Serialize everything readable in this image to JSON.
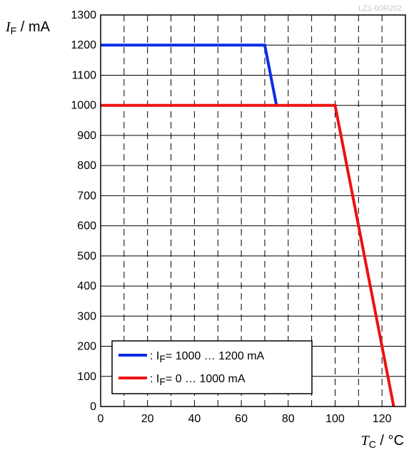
{
  "chart_data": {
    "type": "line",
    "figure_code": "LZ1-00R202",
    "ylabel": {
      "symbol": "I",
      "subscript": "F",
      "unit": " / mA"
    },
    "xlabel": {
      "symbol": "T",
      "subscript": "C",
      "unit": " / °C"
    },
    "xlim": [
      0,
      130
    ],
    "ylim": [
      0,
      1300
    ],
    "xticks": [
      0,
      20,
      40,
      60,
      80,
      100,
      120
    ],
    "yticks": [
      0,
      100,
      200,
      300,
      400,
      500,
      600,
      700,
      800,
      900,
      1000,
      1100,
      1200,
      1300
    ],
    "grid": {
      "vertical_dashed_every": 10,
      "horizontal_solid_every": 100
    },
    "legend_position": "bottom-left",
    "series": [
      {
        "legend": {
          "prefix": ": I",
          "subscript": "F",
          "suffix": "= 1000 … 1200 mA"
        },
        "color": "#0a2ee6",
        "x": [
          0,
          70,
          75
        ],
        "y": [
          1200,
          1200,
          1000
        ]
      },
      {
        "legend": {
          "prefix": ": I",
          "subscript": "F",
          "suffix": "= 0 … 1000 mA"
        },
        "color": "#ee1111",
        "x": [
          0,
          100,
          125
        ],
        "y": [
          1000,
          1000,
          0
        ]
      }
    ]
  }
}
